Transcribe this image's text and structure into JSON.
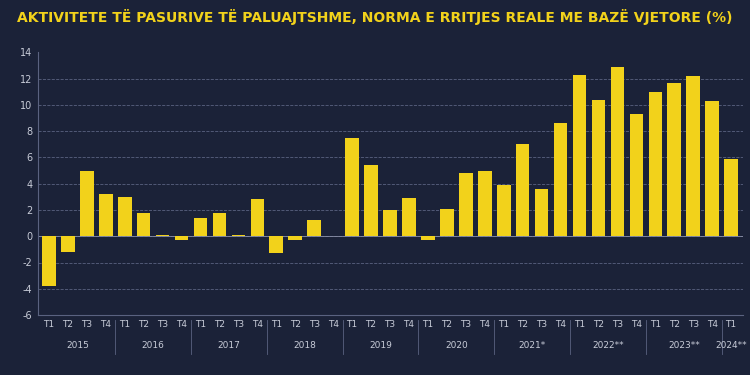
{
  "chart_data": {
    "type": "bar",
    "title": "AKTIVITETE TË PASURIVE TË PALUAJTSHME, NORMA E RRITJES REALE ME BAZË VJETORE (%)",
    "categories": [
      "T1",
      "T2",
      "T3",
      "T4",
      "T1",
      "T2",
      "T3",
      "T4",
      "T1",
      "T2",
      "T3",
      "T4",
      "T1",
      "T2",
      "T3",
      "T4",
      "T1",
      "T2",
      "T3",
      "T4",
      "T1",
      "T2",
      "T3",
      "T4",
      "T1",
      "T2",
      "T3",
      "T4",
      "T1",
      "T2",
      "T3",
      "T4",
      "T1",
      "T2",
      "T3",
      "T4",
      "T1"
    ],
    "groups": [
      "2015",
      "2016",
      "2017",
      "2018",
      "2019",
      "2020",
      "2021*",
      "2022**",
      "2023**",
      "2024**"
    ],
    "values": [
      -3.8,
      -1.2,
      5.0,
      3.2,
      3.0,
      1.8,
      0.1,
      -0.3,
      1.4,
      1.8,
      0.1,
      2.8,
      -1.3,
      -0.3,
      1.2,
      0.05,
      7.5,
      5.4,
      2.0,
      2.9,
      -0.3,
      2.1,
      4.8,
      5.0,
      3.9,
      7.0,
      3.6,
      8.6,
      12.3,
      10.4,
      12.9,
      9.3,
      11.0,
      11.7,
      12.2,
      10.3,
      5.9
    ],
    "color": "#f2d21b",
    "ylim": [
      -6,
      14
    ],
    "yticks": [
      -6,
      -4,
      -2,
      0,
      2,
      4,
      6,
      8,
      10,
      12,
      14
    ],
    "grid": true
  }
}
